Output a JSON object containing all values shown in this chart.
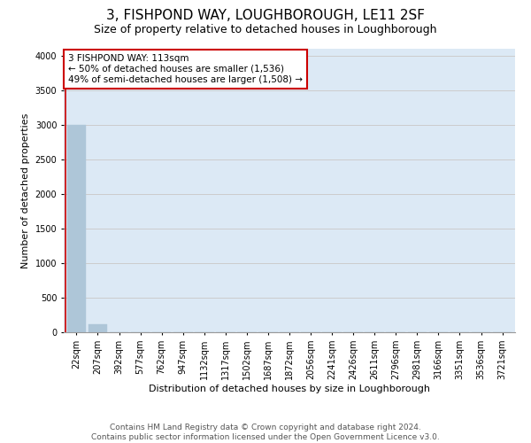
{
  "title": "3, FISHPOND WAY, LOUGHBOROUGH, LE11 2SF",
  "subtitle": "Size of property relative to detached houses in Loughborough",
  "xlabel": "Distribution of detached houses by size in Loughborough",
  "ylabel": "Number of detached properties",
  "footer_line1": "Contains HM Land Registry data © Crown copyright and database right 2024.",
  "footer_line2": "Contains public sector information licensed under the Open Government Licence v3.0.",
  "bar_labels": [
    "22sqm",
    "207sqm",
    "392sqm",
    "577sqm",
    "762sqm",
    "947sqm",
    "1132sqm",
    "1317sqm",
    "1502sqm",
    "1687sqm",
    "1872sqm",
    "2056sqm",
    "2241sqm",
    "2426sqm",
    "2611sqm",
    "2796sqm",
    "2981sqm",
    "3166sqm",
    "3351sqm",
    "3536sqm",
    "3721sqm"
  ],
  "bar_values": [
    3000,
    115,
    5,
    2,
    1,
    1,
    0,
    0,
    0,
    0,
    0,
    0,
    0,
    0,
    0,
    0,
    0,
    0,
    0,
    0,
    0
  ],
  "bar_color": "#aec6d8",
  "bar_edgecolor": "#aec6d8",
  "grid_color": "#cccccc",
  "background_color": "#dce9f5",
  "ylim": [
    0,
    4100
  ],
  "yticks": [
    0,
    500,
    1000,
    1500,
    2000,
    2500,
    3000,
    3500,
    4000
  ],
  "red_line_color": "#cc0000",
  "annotation_text_line1": "3 FISHPOND WAY: 113sqm",
  "annotation_text_line2": "← 50% of detached houses are smaller (1,536)",
  "annotation_text_line3": "49% of semi-detached houses are larger (1,508) →",
  "annotation_box_color": "#ffffff",
  "annotation_border_color": "#cc0000",
  "title_fontsize": 11,
  "title_fontweight": "normal",
  "subtitle_fontsize": 9,
  "axis_label_fontsize": 8,
  "tick_fontsize": 7,
  "annotation_fontsize": 7.5,
  "footer_fontsize": 6.5
}
